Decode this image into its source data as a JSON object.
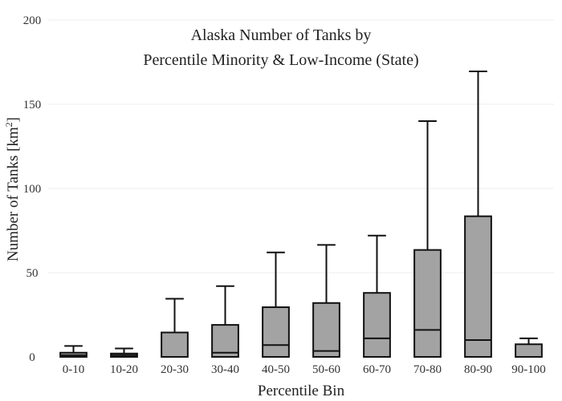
{
  "chart_data": {
    "type": "box",
    "title_line1": "Alaska Number of Tanks by",
    "title_line2": "Percentile Minority & Low-Income (State)",
    "xlabel": "Percentile Bin",
    "ylabel_main": "Number of Tanks  [km",
    "ylabel_sup": "2",
    "ylabel_end": "]",
    "ylim": [
      0,
      200
    ],
    "yticks": [
      0,
      50,
      100,
      150,
      200
    ],
    "grid": true,
    "colors": {
      "box_fill": "#a3a3a3",
      "box_stroke": "#111111",
      "grid": "#eeeeee"
    },
    "categories": [
      "0-10",
      "10-20",
      "20-30",
      "30-40",
      "40-50",
      "50-60",
      "60-70",
      "70-80",
      "80-90",
      "90-100"
    ],
    "boxes": [
      {
        "min": 0,
        "q1": 0,
        "median": 1,
        "q3": 2.5,
        "max": 6.5
      },
      {
        "min": 0,
        "q1": 0,
        "median": 1,
        "q3": 2,
        "max": 5
      },
      {
        "min": 0,
        "q1": 0,
        "median": 0,
        "q3": 14.5,
        "max": 34.5
      },
      {
        "min": 0,
        "q1": 0,
        "median": 2.5,
        "q3": 19,
        "max": 42
      },
      {
        "min": 0,
        "q1": 0,
        "median": 7,
        "q3": 29.5,
        "max": 62
      },
      {
        "min": 0,
        "q1": 0,
        "median": 3.5,
        "q3": 32,
        "max": 66.5
      },
      {
        "min": 0,
        "q1": 0,
        "median": 11,
        "q3": 38,
        "max": 72
      },
      {
        "min": 0,
        "q1": 0,
        "median": 16,
        "q3": 63.5,
        "max": 140
      },
      {
        "min": 0,
        "q1": 0,
        "median": 10,
        "q3": 83.5,
        "max": 169.5
      },
      {
        "min": 0,
        "q1": 0,
        "median": 0,
        "q3": 7.5,
        "max": 11
      }
    ]
  }
}
